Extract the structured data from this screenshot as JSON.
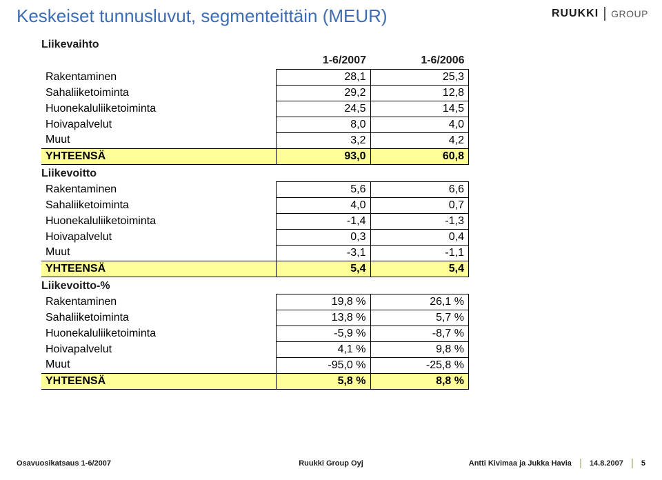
{
  "title": "Keskeiset tunnusluvut, segmenteittäin (MEUR)",
  "logo": {
    "brand": "RUUKKI",
    "sub": "GROUP"
  },
  "columns": {
    "c1": "1-6/2007",
    "c2": "1-6/2006"
  },
  "sections": [
    {
      "label": "Liikevaihto",
      "rows": [
        {
          "label": "Rakentaminen",
          "v1": "28,1",
          "v2": "25,3"
        },
        {
          "label": "Sahaliiketoiminta",
          "v1": "29,2",
          "v2": "12,8"
        },
        {
          "label": "Huonekaluliiketoiminta",
          "v1": "24,5",
          "v2": "14,5"
        },
        {
          "label": "Hoivapalvelut",
          "v1": "8,0",
          "v2": "4,0"
        },
        {
          "label": "Muut",
          "v1": "3,2",
          "v2": "4,2"
        }
      ],
      "total": {
        "label": "YHTEENSÄ",
        "v1": "93,0",
        "v2": "60,8"
      }
    },
    {
      "label": "Liikevoitto",
      "rows": [
        {
          "label": "Rakentaminen",
          "v1": "5,6",
          "v2": "6,6"
        },
        {
          "label": "Sahaliiketoiminta",
          "v1": "4,0",
          "v2": "0,7"
        },
        {
          "label": "Huonekaluliiketoiminta",
          "v1": "-1,4",
          "v2": "-1,3"
        },
        {
          "label": "Hoivapalvelut",
          "v1": "0,3",
          "v2": "0,4"
        },
        {
          "label": "Muut",
          "v1": "-3,1",
          "v2": "-1,1"
        }
      ],
      "total": {
        "label": "YHTEENSÄ",
        "v1": "5,4",
        "v2": "5,4"
      }
    },
    {
      "label": "Liikevoitto-%",
      "rows": [
        {
          "label": "Rakentaminen",
          "v1": "19,8 %",
          "v2": "26,1 %"
        },
        {
          "label": "Sahaliiketoiminta",
          "v1": "13,8 %",
          "v2": "5,7 %"
        },
        {
          "label": "Huonekaluliiketoiminta",
          "v1": "-5,9 %",
          "v2": "-8,7 %"
        },
        {
          "label": "Hoivapalvelut",
          "v1": "4,1 %",
          "v2": "9,8 %"
        },
        {
          "label": "Muut",
          "v1": "-95,0 %",
          "v2": "-25,8 %"
        }
      ],
      "total": {
        "label": "YHTEENSÄ",
        "v1": "5,8 %",
        "v2": "8,8 %"
      }
    }
  ],
  "footer": {
    "left": "Osavuosikatsaus 1-6/2007",
    "center": "Ruukki Group Oyj",
    "authors": "Antti Kivimaa ja Jukka Havia",
    "date": "14.8.2007",
    "page": "5"
  },
  "colors": {
    "title": "#3d6db3",
    "total_bg": "#ffff99",
    "border": "#000000",
    "text": "#1b1b1b",
    "footer_divider": "#c8c8a8"
  }
}
